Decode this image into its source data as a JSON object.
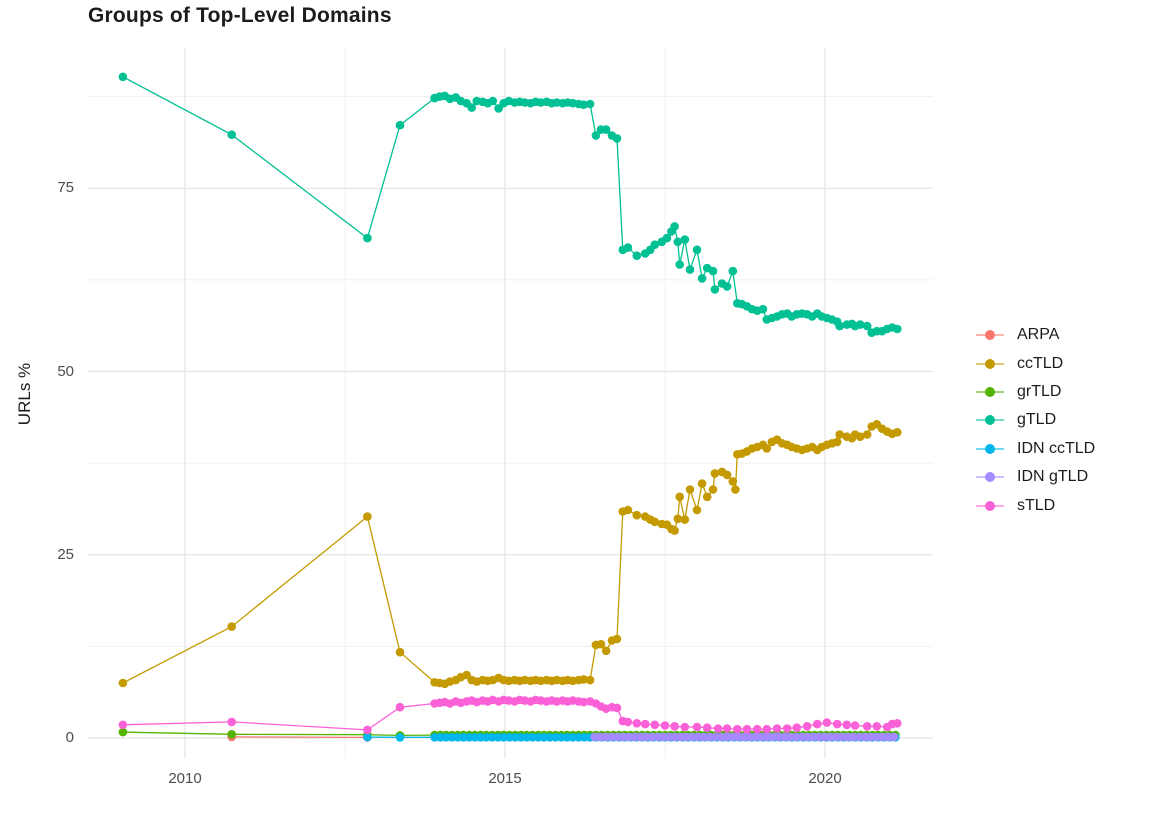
{
  "title": "Groups of Top-Level Domains",
  "axes": {
    "ylabel": "URLs %",
    "x_ticks": [
      {
        "label": "2010",
        "year": 2010
      },
      {
        "label": "2015",
        "year": 2015
      },
      {
        "label": "2020",
        "year": 2020
      }
    ],
    "y_ticks": [
      {
        "label": "0",
        "value": 0
      },
      {
        "label": "25",
        "value": 25
      },
      {
        "label": "50",
        "value": 50
      },
      {
        "label": "75",
        "value": 75
      }
    ]
  },
  "colors": {
    "grid_major": "#e4e4e4",
    "grid_minor": "#f1f1f1",
    "tick_text": "#4d4d4d",
    "title_text": "#1c1c1c"
  },
  "chart_data": {
    "type": "line",
    "title": "Groups of Top-Level Domains",
    "xlabel": "",
    "ylabel": "URLs %",
    "xlim": [
      2008.55,
      2021.7
    ],
    "ylim": [
      -2,
      92
    ],
    "x_major_gridlines": [
      2010,
      2015,
      2020
    ],
    "x_minor_gridlines": [
      2012.5,
      2017.5
    ],
    "y_major_gridlines": [
      0,
      25,
      50,
      75
    ],
    "y_minor_gridlines": [
      12.5,
      37.5,
      62.5,
      87.5
    ],
    "legend_position": "right",
    "grid": true,
    "series": [
      {
        "name": "ARPA",
        "color": "#F8766D",
        "points": [
          [
            2010.73,
            0.15
          ],
          [
            2012.85,
            0.08
          ]
        ]
      },
      {
        "name": "ccTLD",
        "color": "#C49A00",
        "points": [
          [
            2009.03,
            7.5
          ],
          [
            2010.73,
            15.2
          ],
          [
            2012.85,
            30.2
          ],
          [
            2013.36,
            11.7
          ],
          [
            2013.9,
            7.6
          ],
          [
            2013.98,
            7.5
          ],
          [
            2014.06,
            7.4
          ],
          [
            2014.14,
            7.7
          ],
          [
            2014.23,
            7.9
          ],
          [
            2014.31,
            8.3
          ],
          [
            2014.4,
            8.6
          ],
          [
            2014.48,
            7.9
          ],
          [
            2014.56,
            7.7
          ],
          [
            2014.65,
            7.9
          ],
          [
            2014.73,
            7.8
          ],
          [
            2014.81,
            7.9
          ],
          [
            2014.9,
            8.2
          ],
          [
            2014.98,
            7.9
          ],
          [
            2015.06,
            7.8
          ],
          [
            2015.15,
            7.9
          ],
          [
            2015.23,
            7.8
          ],
          [
            2015.31,
            7.9
          ],
          [
            2015.4,
            7.8
          ],
          [
            2015.48,
            7.9
          ],
          [
            2015.56,
            7.8
          ],
          [
            2015.65,
            7.9
          ],
          [
            2015.73,
            7.8
          ],
          [
            2015.81,
            7.9
          ],
          [
            2015.9,
            7.8
          ],
          [
            2015.98,
            7.9
          ],
          [
            2016.06,
            7.8
          ],
          [
            2016.15,
            7.9
          ],
          [
            2016.23,
            8.0
          ],
          [
            2016.33,
            7.9
          ],
          [
            2016.42,
            12.7
          ],
          [
            2016.5,
            12.8
          ],
          [
            2016.58,
            11.9
          ],
          [
            2016.67,
            13.3
          ],
          [
            2016.75,
            13.5
          ],
          [
            2016.84,
            30.9
          ],
          [
            2016.92,
            31.1
          ],
          [
            2017.06,
            30.4
          ],
          [
            2017.19,
            30.2
          ],
          [
            2017.27,
            29.8
          ],
          [
            2017.34,
            29.5
          ],
          [
            2017.45,
            29.2
          ],
          [
            2017.53,
            29.1
          ],
          [
            2017.6,
            28.5
          ],
          [
            2017.65,
            28.3
          ],
          [
            2017.7,
            29.9
          ],
          [
            2017.73,
            32.9
          ],
          [
            2017.81,
            29.8
          ],
          [
            2017.89,
            33.9
          ],
          [
            2018.0,
            31.1
          ],
          [
            2018.08,
            34.7
          ],
          [
            2018.16,
            32.9
          ],
          [
            2018.25,
            33.9
          ],
          [
            2018.28,
            36.1
          ],
          [
            2018.39,
            36.3
          ],
          [
            2018.47,
            35.9
          ],
          [
            2018.56,
            35.0
          ],
          [
            2018.6,
            33.9
          ],
          [
            2018.63,
            38.7
          ],
          [
            2018.7,
            38.8
          ],
          [
            2018.78,
            39.1
          ],
          [
            2018.86,
            39.5
          ],
          [
            2018.94,
            39.7
          ],
          [
            2019.03,
            40.0
          ],
          [
            2019.09,
            39.5
          ],
          [
            2019.17,
            40.4
          ],
          [
            2019.25,
            40.7
          ],
          [
            2019.33,
            40.2
          ],
          [
            2019.41,
            40.0
          ],
          [
            2019.48,
            39.7
          ],
          [
            2019.56,
            39.5
          ],
          [
            2019.64,
            39.3
          ],
          [
            2019.72,
            39.5
          ],
          [
            2019.8,
            39.7
          ],
          [
            2019.88,
            39.3
          ],
          [
            2019.95,
            39.7
          ],
          [
            2020.03,
            40.0
          ],
          [
            2020.11,
            40.2
          ],
          [
            2020.19,
            40.4
          ],
          [
            2020.23,
            41.4
          ],
          [
            2020.34,
            41.1
          ],
          [
            2020.42,
            40.9
          ],
          [
            2020.47,
            41.4
          ],
          [
            2020.55,
            41.1
          ],
          [
            2020.66,
            41.4
          ],
          [
            2020.73,
            42.5
          ],
          [
            2020.81,
            42.8
          ],
          [
            2020.89,
            42.2
          ],
          [
            2020.97,
            41.8
          ],
          [
            2021.05,
            41.5
          ],
          [
            2021.13,
            41.7
          ]
        ]
      },
      {
        "name": "grTLD",
        "color": "#53B400",
        "points": [
          [
            2009.03,
            0.8
          ],
          [
            2010.73,
            0.5
          ],
          [
            2012.85,
            0.45
          ],
          [
            2013.36,
            0.35
          ]
        ],
        "fill": {
          "from": 2013.9,
          "to": 2021.13,
          "step": 0.09,
          "value": 0.4
        }
      },
      {
        "name": "gTLD",
        "color": "#00C094",
        "points": [
          [
            2009.03,
            90.2
          ],
          [
            2010.73,
            82.3
          ],
          [
            2012.85,
            68.2
          ],
          [
            2013.36,
            83.6
          ],
          [
            2013.9,
            87.3
          ],
          [
            2013.98,
            87.5
          ],
          [
            2014.06,
            87.6
          ],
          [
            2014.14,
            87.2
          ],
          [
            2014.23,
            87.4
          ],
          [
            2014.31,
            86.9
          ],
          [
            2014.4,
            86.6
          ],
          [
            2014.48,
            86.0
          ],
          [
            2014.56,
            86.9
          ],
          [
            2014.65,
            86.8
          ],
          [
            2014.73,
            86.6
          ],
          [
            2014.81,
            86.9
          ],
          [
            2014.9,
            85.9
          ],
          [
            2014.98,
            86.6
          ],
          [
            2015.06,
            86.9
          ],
          [
            2015.15,
            86.7
          ],
          [
            2015.23,
            86.8
          ],
          [
            2015.31,
            86.7
          ],
          [
            2015.4,
            86.6
          ],
          [
            2015.48,
            86.8
          ],
          [
            2015.56,
            86.7
          ],
          [
            2015.65,
            86.8
          ],
          [
            2015.73,
            86.6
          ],
          [
            2015.81,
            86.7
          ],
          [
            2015.9,
            86.6
          ],
          [
            2015.98,
            86.7
          ],
          [
            2016.06,
            86.6
          ],
          [
            2016.15,
            86.5
          ],
          [
            2016.23,
            86.4
          ],
          [
            2016.33,
            86.5
          ],
          [
            2016.42,
            82.2
          ],
          [
            2016.5,
            83.0
          ],
          [
            2016.58,
            83.0
          ],
          [
            2016.67,
            82.2
          ],
          [
            2016.75,
            81.8
          ],
          [
            2016.84,
            66.6
          ],
          [
            2016.92,
            66.9
          ],
          [
            2017.06,
            65.8
          ],
          [
            2017.19,
            66.1
          ],
          [
            2017.27,
            66.6
          ],
          [
            2017.34,
            67.3
          ],
          [
            2017.45,
            67.7
          ],
          [
            2017.53,
            68.2
          ],
          [
            2017.6,
            69.1
          ],
          [
            2017.65,
            69.8
          ],
          [
            2017.7,
            67.7
          ],
          [
            2017.73,
            64.6
          ],
          [
            2017.81,
            68.0
          ],
          [
            2017.89,
            63.9
          ],
          [
            2018.0,
            66.6
          ],
          [
            2018.08,
            62.7
          ],
          [
            2018.16,
            64.1
          ],
          [
            2018.25,
            63.7
          ],
          [
            2018.28,
            61.2
          ],
          [
            2018.39,
            62.0
          ],
          [
            2018.47,
            61.6
          ],
          [
            2018.56,
            63.7
          ],
          [
            2018.63,
            59.3
          ],
          [
            2018.7,
            59.2
          ],
          [
            2018.78,
            58.9
          ],
          [
            2018.86,
            58.5
          ],
          [
            2018.94,
            58.3
          ],
          [
            2019.03,
            58.5
          ],
          [
            2019.09,
            57.1
          ],
          [
            2019.17,
            57.3
          ],
          [
            2019.25,
            57.5
          ],
          [
            2019.33,
            57.8
          ],
          [
            2019.41,
            57.9
          ],
          [
            2019.48,
            57.5
          ],
          [
            2019.56,
            57.8
          ],
          [
            2019.64,
            57.9
          ],
          [
            2019.72,
            57.8
          ],
          [
            2019.8,
            57.5
          ],
          [
            2019.88,
            57.9
          ],
          [
            2019.95,
            57.5
          ],
          [
            2020.03,
            57.3
          ],
          [
            2020.11,
            57.1
          ],
          [
            2020.19,
            56.8
          ],
          [
            2020.23,
            56.2
          ],
          [
            2020.34,
            56.4
          ],
          [
            2020.42,
            56.5
          ],
          [
            2020.47,
            56.2
          ],
          [
            2020.55,
            56.4
          ],
          [
            2020.66,
            56.2
          ],
          [
            2020.73,
            55.3
          ],
          [
            2020.81,
            55.5
          ],
          [
            2020.89,
            55.5
          ],
          [
            2020.97,
            55.8
          ],
          [
            2021.05,
            56.0
          ],
          [
            2021.13,
            55.8
          ]
        ]
      },
      {
        "name": "IDN ccTLD",
        "color": "#00B6EB",
        "points": [
          [
            2012.85,
            0.12
          ],
          [
            2013.36,
            0.1
          ]
        ],
        "fill": {
          "from": 2013.9,
          "to": 2021.13,
          "step": 0.09,
          "value": 0.1
        }
      },
      {
        "name": "IDN gTLD",
        "color": "#A58AFF",
        "points": [],
        "fill": {
          "from": 2016.4,
          "to": 2021.13,
          "step": 0.09,
          "value": 0.15
        }
      },
      {
        "name": "sTLD",
        "color": "#FB61D7",
        "points": [
          [
            2009.03,
            1.8
          ],
          [
            2010.73,
            2.2
          ],
          [
            2012.85,
            1.1
          ],
          [
            2013.36,
            4.2
          ],
          [
            2013.9,
            4.7
          ],
          [
            2013.98,
            4.8
          ],
          [
            2014.06,
            4.9
          ],
          [
            2014.14,
            4.7
          ],
          [
            2014.23,
            5.0
          ],
          [
            2014.31,
            4.8
          ],
          [
            2014.4,
            5.0
          ],
          [
            2014.48,
            5.1
          ],
          [
            2014.56,
            4.9
          ],
          [
            2014.65,
            5.1
          ],
          [
            2014.73,
            5.0
          ],
          [
            2014.81,
            5.2
          ],
          [
            2014.9,
            5.0
          ],
          [
            2014.98,
            5.2
          ],
          [
            2015.06,
            5.1
          ],
          [
            2015.15,
            5.0
          ],
          [
            2015.23,
            5.2
          ],
          [
            2015.31,
            5.1
          ],
          [
            2015.4,
            5.0
          ],
          [
            2015.48,
            5.2
          ],
          [
            2015.56,
            5.1
          ],
          [
            2015.65,
            5.0
          ],
          [
            2015.73,
            5.1
          ],
          [
            2015.81,
            5.0
          ],
          [
            2015.9,
            5.1
          ],
          [
            2015.98,
            5.0
          ],
          [
            2016.06,
            5.1
          ],
          [
            2016.15,
            5.0
          ],
          [
            2016.23,
            4.9
          ],
          [
            2016.33,
            5.0
          ],
          [
            2016.42,
            4.7
          ],
          [
            2016.5,
            4.3
          ],
          [
            2016.58,
            4.0
          ],
          [
            2016.67,
            4.2
          ],
          [
            2016.75,
            4.1
          ],
          [
            2016.84,
            2.3
          ],
          [
            2016.92,
            2.2
          ],
          [
            2017.06,
            2.0
          ],
          [
            2017.19,
            1.9
          ],
          [
            2017.34,
            1.8
          ],
          [
            2017.5,
            1.7
          ],
          [
            2017.65,
            1.6
          ],
          [
            2017.81,
            1.5
          ],
          [
            2018.0,
            1.5
          ],
          [
            2018.16,
            1.4
          ],
          [
            2018.33,
            1.3
          ],
          [
            2018.47,
            1.3
          ],
          [
            2018.63,
            1.2
          ],
          [
            2018.78,
            1.2
          ],
          [
            2018.94,
            1.2
          ],
          [
            2019.09,
            1.2
          ],
          [
            2019.25,
            1.3
          ],
          [
            2019.41,
            1.3
          ],
          [
            2019.56,
            1.4
          ],
          [
            2019.72,
            1.6
          ],
          [
            2019.88,
            1.9
          ],
          [
            2020.03,
            2.1
          ],
          [
            2020.19,
            1.9
          ],
          [
            2020.34,
            1.8
          ],
          [
            2020.47,
            1.7
          ],
          [
            2020.66,
            1.6
          ],
          [
            2020.81,
            1.6
          ],
          [
            2020.97,
            1.5
          ],
          [
            2021.05,
            1.9
          ],
          [
            2021.13,
            2.0
          ]
        ]
      }
    ]
  }
}
